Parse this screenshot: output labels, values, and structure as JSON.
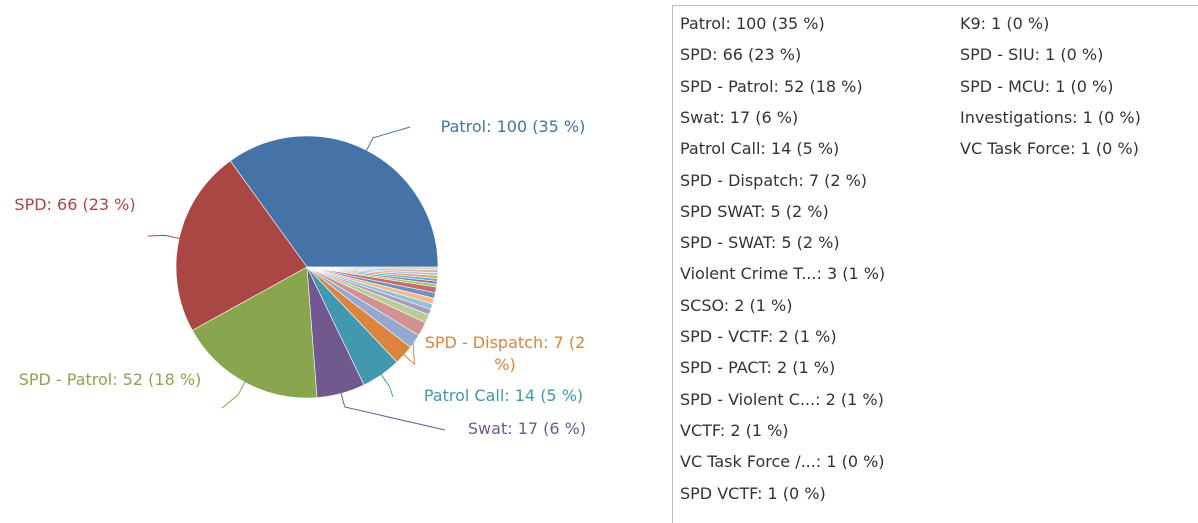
{
  "chart_data": {
    "type": "pie",
    "values": [
      100,
      66,
      52,
      17,
      14,
      7,
      5,
      5,
      3,
      2,
      2,
      2,
      2,
      2,
      1,
      1,
      1,
      1,
      1,
      1,
      1
    ],
    "value_labels": [
      "Patrol: 100 (35 %)",
      "SPD: 66 (23 %)",
      "SPD - Patrol: 52 (18 %)",
      "Swat: 17 (6 %)",
      "Patrol Call: 14 (5 %)",
      "SPD - Dispatch: 7 (2 %)",
      "SPD SWAT: 5 (2 %)",
      "SPD - SWAT: 5 (2 %)",
      "Violent Crime T...: 3 (1 %)",
      "SCSO: 2 (1 %)",
      "SPD - VCTF: 2 (1 %)",
      "SPD - PACT: 2 (1 %)",
      "SPD - Violent C...: 2 (1 %)",
      "VCTF: 2 (1 %)",
      "VC Task Force /...: 1 (0 %)",
      "SPD VCTF: 1 (0 %)",
      "K9: 1 (0 %)",
      "SPD - SIU: 1 (0 %)",
      "SPD - MCU: 1 (0 %)",
      "Investigations: 1 (0 %)",
      "VC Task Force: 1 (0 %)"
    ],
    "colors": [
      "#4572a7",
      "#aa4643",
      "#89a54e",
      "#71588f",
      "#4198af",
      "#db843d",
      "#93a9cf",
      "#d19392",
      "#b9cd96",
      "#a99bbd",
      "#91c3d5",
      "#f9b98c",
      "#6f8fbf",
      "#c46e6b",
      "#a4c26f",
      "#8c78a8",
      "#62afc6",
      "#e8a165",
      "#b5c5e0",
      "#dfb1b0",
      "#cedcb4"
    ],
    "legend": true
  }
}
